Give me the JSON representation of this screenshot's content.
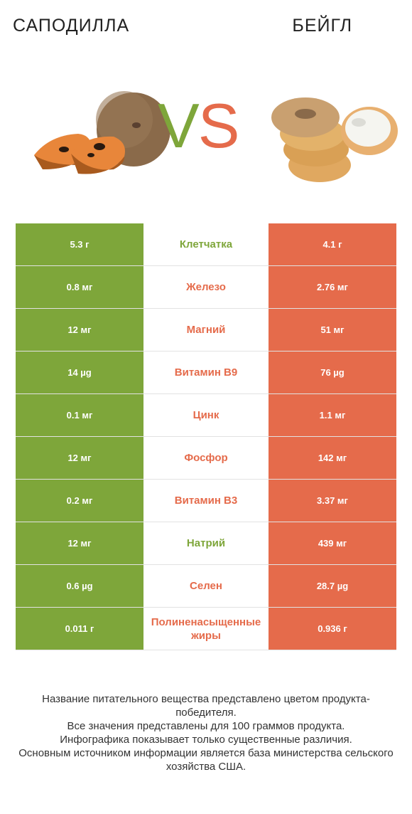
{
  "header": {
    "left_product": "САПОДИЛЛА",
    "right_product": "БЕЙГЛ",
    "vs_v": "V",
    "vs_s": "S"
  },
  "colors": {
    "left_accent": "#7ea63a",
    "right_accent": "#e56b4b"
  },
  "rows": [
    {
      "left": "5.3 г",
      "name": "Клетчатка",
      "right": "4.1 г",
      "winner": "left"
    },
    {
      "left": "0.8 мг",
      "name": "Железо",
      "right": "2.76 мг",
      "winner": "right"
    },
    {
      "left": "12 мг",
      "name": "Магний",
      "right": "51 мг",
      "winner": "right"
    },
    {
      "left": "14 µg",
      "name": "Витамин B9",
      "right": "76 µg",
      "winner": "right"
    },
    {
      "left": "0.1 мг",
      "name": "Цинк",
      "right": "1.1 мг",
      "winner": "right"
    },
    {
      "left": "12 мг",
      "name": "Фосфор",
      "right": "142 мг",
      "winner": "right"
    },
    {
      "left": "0.2 мг",
      "name": "Витамин B3",
      "right": "3.37 мг",
      "winner": "right"
    },
    {
      "left": "12 мг",
      "name": "Натрий",
      "right": "439 мг",
      "winner": "left"
    },
    {
      "left": "0.6 µg",
      "name": "Селен",
      "right": "28.7 µg",
      "winner": "right"
    },
    {
      "left": "0.011 г",
      "name": "Полиненасыщенные жиры",
      "right": "0.936 г",
      "winner": "right"
    }
  ],
  "footer": {
    "line1": "Название питательного вещества представлено цветом продукта-победителя.",
    "line2": "Все значения представлены для 100 граммов продукта.",
    "line3": "Инфографика показывает только существенные различия.",
    "line4": "Основным источником информации является база министерства сельского хозяйства США."
  }
}
